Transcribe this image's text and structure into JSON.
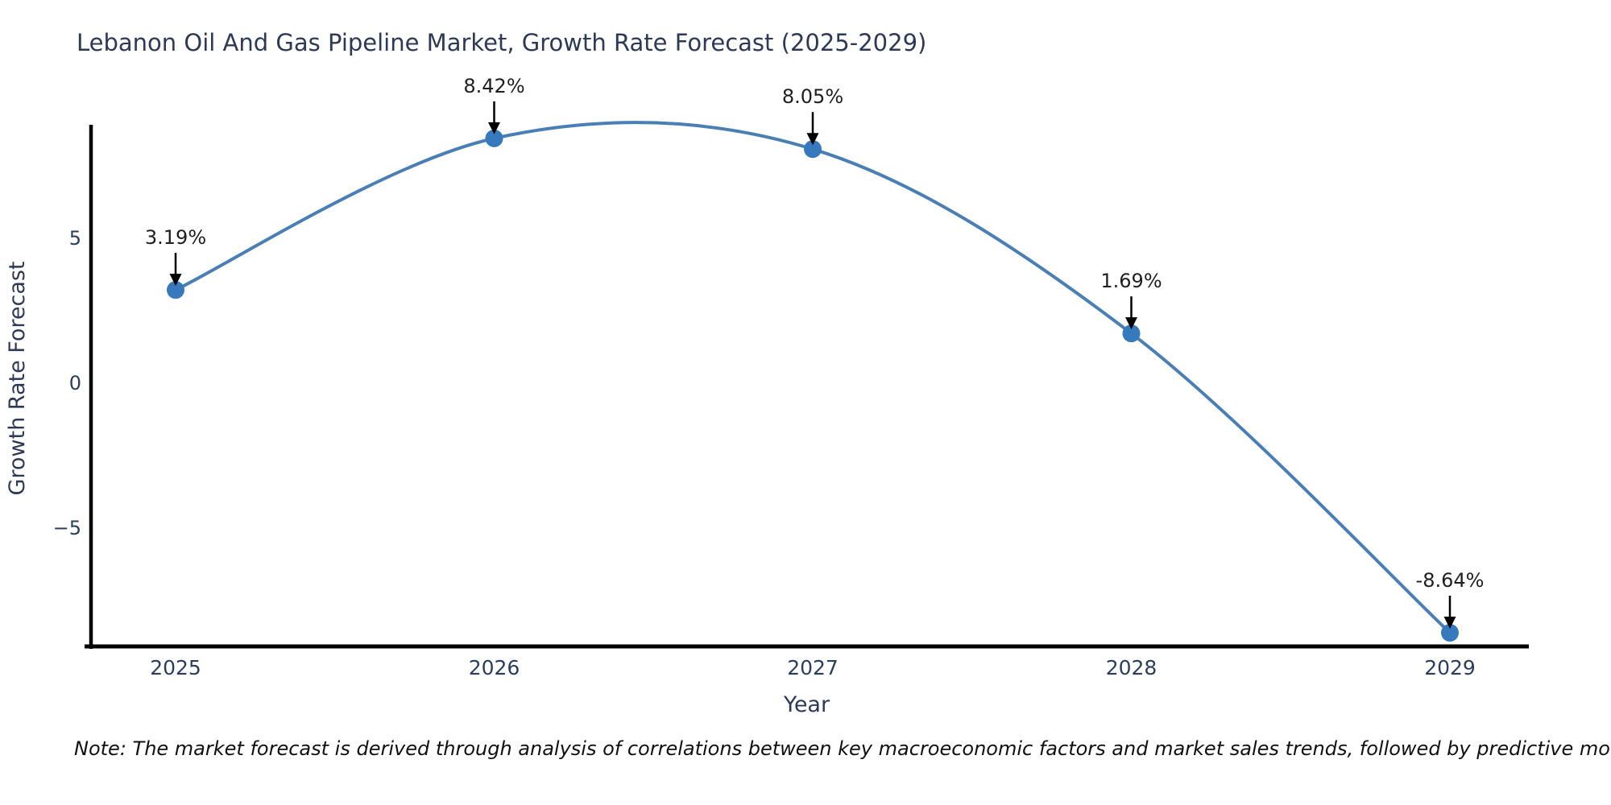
{
  "footnote": "Note: The market forecast is derived through analysis of correlations between key macroeconomic factors and market sales trends, followed by predictive modeling to project future sales",
  "chart_data": {
    "type": "line",
    "title": "Lebanon Oil And Gas Pipeline Market, Growth Rate Forecast (2025-2029)",
    "xlabel": "Year",
    "ylabel": "Growth Rate Forecast",
    "categories": [
      "2025",
      "2026",
      "2027",
      "2028",
      "2029"
    ],
    "values": [
      3.19,
      8.42,
      8.05,
      1.69,
      -8.64
    ],
    "point_labels": [
      "3.19%",
      "8.42%",
      "8.05%",
      "1.69%",
      "-8.64%"
    ],
    "series_name": "Growth Rate Forecast",
    "line_style": "spline",
    "markers": true,
    "grid": false,
    "legend": null,
    "yticks": [
      {
        "value": 5,
        "label": "5"
      },
      {
        "value": 0,
        "label": "0"
      },
      {
        "value": -5,
        "label": "−5"
      }
    ],
    "ylim": [
      -9.2,
      8.9
    ],
    "colors": {
      "line": "#4a7fb5",
      "marker": "#3779bd",
      "axis": "#000000",
      "arrow": "#000000",
      "tick_text": "#2a3f5f",
      "annotation_text": "#1f1f1f",
      "title_text": "#2c3a58",
      "background": "#ffffff"
    }
  }
}
